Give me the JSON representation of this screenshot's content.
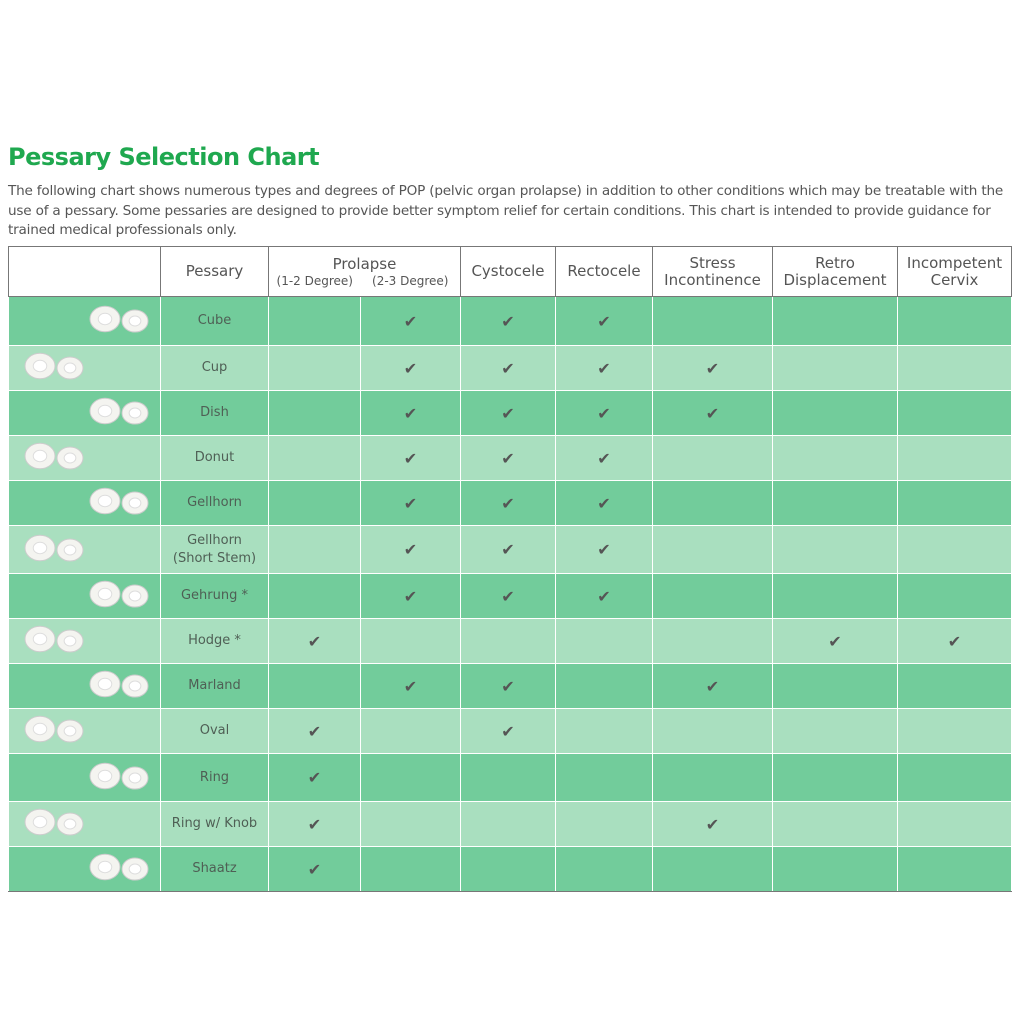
{
  "title": "Pessary Selection Chart",
  "intro": "The following chart shows numerous types and degrees of POP (pelvic organ prolapse) in addition to other conditions which may be treatable with the use of a pessary. Some pessaries are designed to provide better symptom relief for certain conditions. This chart is intended to provide guidance for trained medical professionals only.",
  "table": {
    "headers": [
      "Pessary",
      "Prolapse",
      "Cystocele",
      "Rectocele",
      "Stress\nIncontinence",
      "Retro\nDisplacement",
      "Incompetent\nCervix"
    ],
    "subheaders": [
      "(1-2 Degree)",
      "(2-3 Degree)"
    ],
    "rows": [
      {
        "name": "Cube",
        "cells": [
          null,
          "✔",
          "✔",
          "✔",
          null,
          null,
          null
        ]
      },
      {
        "name": "Cup",
        "cells": [
          null,
          "✔",
          "✔",
          "✔",
          "✔",
          null,
          null
        ]
      },
      {
        "name": "Dish",
        "cells": [
          null,
          "✔",
          "✔",
          "✔",
          "✔",
          null,
          null
        ]
      },
      {
        "name": "Donut",
        "cells": [
          null,
          "✔",
          "✔",
          "✔",
          null,
          null,
          null
        ]
      },
      {
        "name": "Gellhorn",
        "cells": [
          null,
          "✔",
          "✔",
          "✔",
          null,
          null,
          null
        ]
      },
      {
        "name": "Gellhorn\n(Short Stem)",
        "cells": [
          null,
          "✔",
          "✔",
          "✔",
          null,
          null,
          null
        ]
      },
      {
        "name": "Gehrung *",
        "cells": [
          null,
          "✔",
          "✔",
          "✔",
          null,
          null,
          null
        ]
      },
      {
        "name": "Hodge *",
        "cells": [
          "✔",
          null,
          null,
          null,
          null,
          "✔",
          "✔"
        ]
      },
      {
        "name": "Marland",
        "cells": [
          null,
          "✔",
          "✔",
          null,
          "✔",
          null,
          null
        ]
      },
      {
        "name": "Oval",
        "cells": [
          "✔",
          null,
          "✔",
          null,
          null,
          null,
          null
        ]
      },
      {
        "name": "Ring",
        "cells": [
          "✔",
          null,
          null,
          null,
          null,
          null,
          null
        ]
      },
      {
        "name": "Ring w/ Knob",
        "cells": [
          "✔",
          null,
          null,
          null,
          "✔",
          null,
          null
        ]
      },
      {
        "name": "Shaatz",
        "cells": [
          "✔",
          null,
          null,
          null,
          null,
          null,
          null
        ]
      }
    ]
  }
}
